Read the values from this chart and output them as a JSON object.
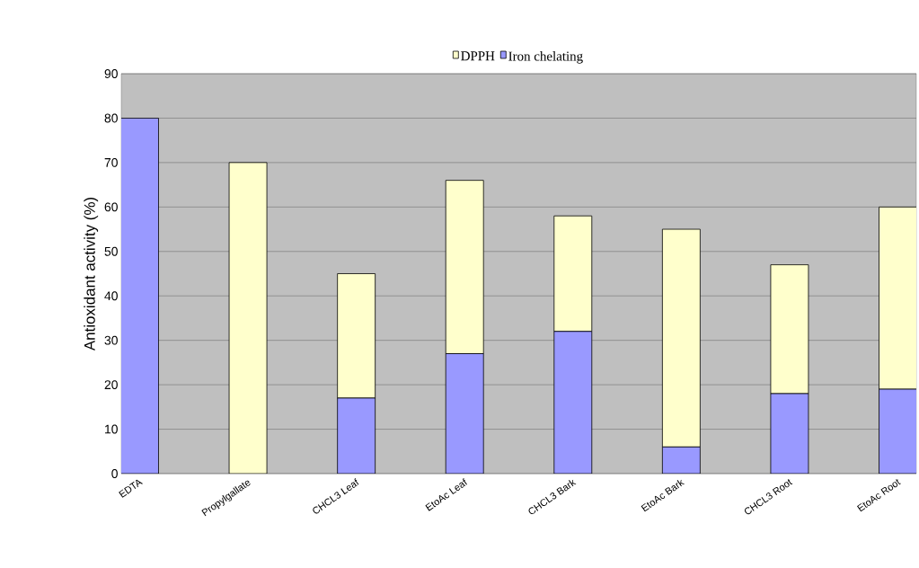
{
  "chart_data": {
    "type": "bar",
    "stacked": true,
    "ylabel": "Antioxidant activity (%)",
    "categories": [
      "EDTA",
      "Propylgallate",
      "CHCL3 Leaf",
      "EtoAc Leaf",
      "CHCL3 Bark",
      "EtoAc Bark",
      "CHCL3 Root",
      "EtoAc Root"
    ],
    "series": [
      {
        "name": "Iron chelating",
        "color": "#9999ff",
        "values": [
          80,
          0,
          17,
          27,
          32,
          6,
          18,
          19
        ]
      },
      {
        "name": "DPPH",
        "color": "#ffffcc",
        "values": [
          0,
          70,
          28,
          39,
          26,
          49,
          29,
          41
        ]
      }
    ],
    "ylim": [
      0,
      90
    ],
    "yticks": [
      0,
      10,
      20,
      30,
      40,
      50,
      60,
      70,
      80,
      90
    ],
    "grid": "y",
    "legend": "top"
  }
}
